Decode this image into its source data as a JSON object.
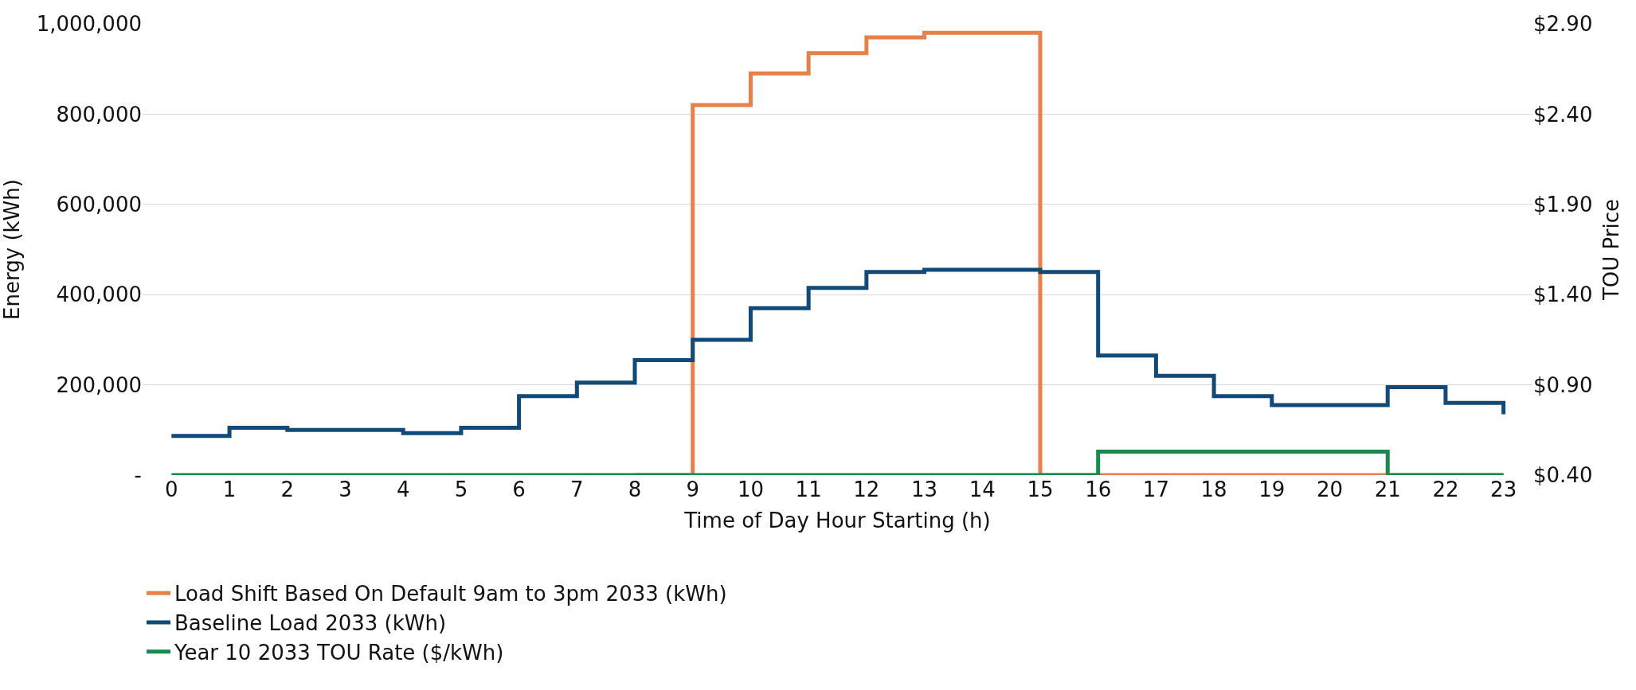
{
  "chart_data": {
    "type": "step",
    "xlabel": "Time of Day Hour Starting (h)",
    "ylabel": "Energy (kWh)",
    "y2label": "TOU Price",
    "x": [
      0,
      1,
      2,
      3,
      4,
      5,
      6,
      7,
      8,
      9,
      10,
      11,
      12,
      13,
      14,
      15,
      16,
      17,
      18,
      19,
      20,
      21,
      22,
      23
    ],
    "xlim": [
      -0.5,
      23.5
    ],
    "xticks": [
      0,
      1,
      2,
      3,
      4,
      5,
      6,
      7,
      8,
      9,
      10,
      11,
      12,
      13,
      14,
      15,
      16,
      17,
      18,
      19,
      20,
      21,
      22,
      23
    ],
    "ylim": [
      0,
      1000000
    ],
    "yticks": [
      {
        "value": 0,
        "label": "-"
      },
      {
        "value": 200000,
        "label": "200,000"
      },
      {
        "value": 400000,
        "label": "400,000"
      },
      {
        "value": 600000,
        "label": "600,000"
      },
      {
        "value": 800000,
        "label": "800,000"
      },
      {
        "value": 1000000,
        "label": "1,000,000"
      }
    ],
    "y2lim": [
      0.4,
      2.9
    ],
    "y2ticks": [
      {
        "value": 0.4,
        "label": "$0.40"
      },
      {
        "value": 0.9,
        "label": "$0.90"
      },
      {
        "value": 1.4,
        "label": "$1.40"
      },
      {
        "value": 1.9,
        "label": "$1.90"
      },
      {
        "value": 2.4,
        "label": "$2.40"
      },
      {
        "value": 2.9,
        "label": "$2.90"
      }
    ],
    "grid": "y",
    "legend": "bottom",
    "series": [
      {
        "name": "Load Shift Based On Default 9am to 3pm 2033 (kWh)",
        "color": "#e8804a",
        "values": [
          null,
          null,
          null,
          null,
          null,
          null,
          null,
          null,
          0,
          820000,
          890000,
          935000,
          970000,
          980000,
          980000,
          0,
          0,
          0,
          0,
          0,
          0,
          0,
          0,
          0
        ]
      },
      {
        "name": "Baseline Load 2033 (kWh)",
        "color": "#114a78",
        "values": [
          87000,
          105000,
          100000,
          100000,
          93000,
          105000,
          175000,
          205000,
          255000,
          300000,
          370000,
          415000,
          450000,
          455000,
          455000,
          450000,
          265000,
          220000,
          175000,
          155000,
          155000,
          195000,
          160000,
          135000
        ]
      },
      {
        "name": "Year 10 2033 TOU Rate ($/kWh)",
        "color": "#1a8a4e",
        "axis": "y2",
        "values": [
          0.4,
          0.4,
          0.4,
          0.4,
          0.4,
          0.4,
          0.4,
          0.4,
          0.4,
          0.4,
          0.4,
          0.4,
          0.4,
          0.4,
          0.4,
          0.4,
          0.53,
          0.53,
          0.53,
          0.53,
          0.53,
          0.4,
          0.4,
          0.4
        ]
      }
    ]
  }
}
